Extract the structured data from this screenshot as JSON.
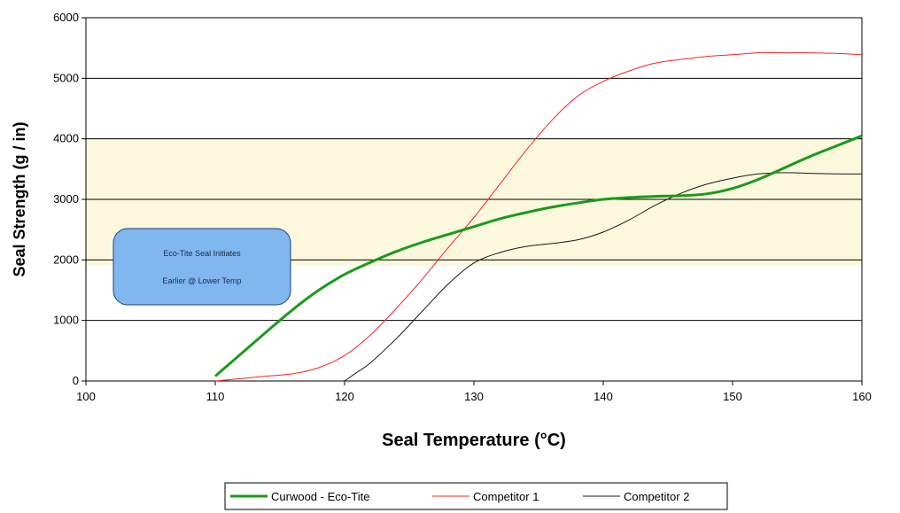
{
  "chart_data": {
    "type": "line",
    "xlabel": "Seal Temperature (°C)",
    "ylabel": "Seal Strength (g / in)",
    "xlim": [
      100,
      160
    ],
    "ylim": [
      0,
      6000
    ],
    "x_ticks": [
      100,
      110,
      120,
      130,
      140,
      150,
      160
    ],
    "y_ticks": [
      0,
      1000,
      2000,
      3000,
      4000,
      5000,
      6000
    ],
    "grid": "horizontal",
    "highlight_band": {
      "y_from": 1900,
      "y_to": 4000,
      "color": "#fbf8de"
    },
    "annotation": {
      "lines": [
        "Eco-Tite Seal Initiates",
        "Earlier @ Lower Temp"
      ],
      "fill": "#7fb7ee",
      "border": "#1f3f7a"
    },
    "legend_position": "bottom",
    "series": [
      {
        "name": "Curwood - Eco-Tite",
        "color": "#1a9a1a",
        "width": 3,
        "x": [
          110,
          112,
          114,
          116,
          118,
          120,
          122,
          124,
          126,
          128,
          130,
          132,
          134,
          136,
          138,
          140,
          142,
          144,
          146,
          148,
          150,
          152,
          154,
          156,
          158,
          160
        ],
        "y": [
          80,
          450,
          820,
          1180,
          1500,
          1760,
          1960,
          2140,
          2290,
          2420,
          2550,
          2680,
          2780,
          2870,
          2940,
          3000,
          3030,
          3050,
          3060,
          3090,
          3180,
          3330,
          3520,
          3710,
          3880,
          4050
        ]
      },
      {
        "name": "Competitor 1",
        "color": "#ff2020",
        "width": 1,
        "x": [
          110,
          112,
          114,
          116,
          118,
          120,
          122,
          124,
          126,
          128,
          130,
          132,
          134,
          136,
          138,
          140,
          142,
          144,
          146,
          148,
          150,
          152,
          154,
          156,
          158,
          160
        ],
        "y": [
          0,
          40,
          80,
          120,
          220,
          420,
          760,
          1200,
          1680,
          2200,
          2700,
          3250,
          3800,
          4300,
          4700,
          4950,
          5120,
          5250,
          5310,
          5360,
          5390,
          5420,
          5420,
          5420,
          5410,
          5390
        ]
      },
      {
        "name": "Competitor 2",
        "color": "#1a1a1a",
        "width": 1,
        "x": [
          120,
          121,
          122,
          124,
          126,
          128,
          130,
          132,
          134,
          136,
          138,
          140,
          142,
          144,
          146,
          148,
          150,
          152,
          154,
          156,
          158,
          160
        ],
        "y": [
          0,
          150,
          300,
          700,
          1150,
          1600,
          1950,
          2120,
          2220,
          2270,
          2330,
          2460,
          2660,
          2900,
          3100,
          3250,
          3350,
          3420,
          3440,
          3430,
          3420,
          3420
        ]
      }
    ]
  }
}
